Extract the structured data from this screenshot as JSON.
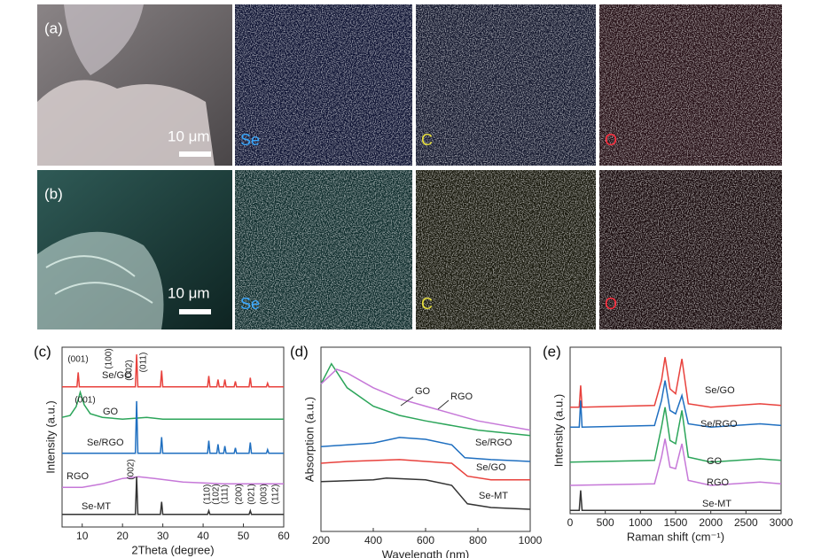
{
  "panels": [
    {
      "label": "(a)",
      "scale_bar": "10 μm",
      "maps": [
        "Se",
        "C",
        "O"
      ]
    },
    {
      "label": "(b)",
      "scale_bar": "10 μm",
      "maps": [
        "Se",
        "C",
        "O"
      ]
    }
  ],
  "chart_data": [
    {
      "type": "line",
      "label": "(c)",
      "xlabel": "2Theta (degree)",
      "ylabel": "Intensity (a.u.)",
      "xlim": [
        5,
        60
      ],
      "xticks": [
        10,
        20,
        30,
        40,
        50,
        60
      ],
      "ylim": [
        0,
        100
      ],
      "annotations": [
        "(001)",
        "(100)",
        "(002)",
        "(011)",
        "(001)",
        "(002)",
        "(110)",
        "(102)",
        "(111)",
        "(200)",
        "(021)",
        "(003)",
        "(112)"
      ],
      "series": [
        {
          "name": "Se/GO",
          "color": "#e8413c",
          "x": [
            5,
            8.7,
            9,
            9.3,
            23.2,
            23.5,
            23.8,
            29.4,
            29.7,
            30,
            41.1,
            41.4,
            41.7,
            43.4,
            43.7,
            44,
            45.1,
            45.4,
            45.7,
            47.7,
            48,
            48.3,
            51.4,
            51.7,
            52,
            55.7,
            56,
            56.3,
            60
          ],
          "values": [
            78,
            78,
            86,
            78,
            78,
            96,
            78,
            78,
            87,
            78,
            78,
            84,
            78,
            78,
            82,
            78,
            78,
            82,
            78,
            78,
            81,
            78,
            78,
            83,
            78,
            78,
            80,
            78,
            78
          ]
        },
        {
          "name": "GO",
          "color": "#2ca55a",
          "x": [
            5,
            7,
            8.5,
            9.5,
            10.5,
            12,
            15,
            20,
            26,
            30,
            40,
            60
          ],
          "values": [
            61,
            62,
            67,
            75,
            68,
            63,
            61,
            60,
            61,
            60,
            60,
            60
          ]
        },
        {
          "name": "Se/RGO",
          "color": "#1f6fc0",
          "x": [
            5,
            23.2,
            23.5,
            23.8,
            29.4,
            29.7,
            30,
            41.1,
            41.4,
            41.7,
            43.4,
            43.7,
            44,
            45.1,
            45.4,
            45.7,
            47.7,
            48,
            48.3,
            51.4,
            51.7,
            52,
            55.7,
            56,
            56.3,
            60
          ],
          "values": [
            41,
            41,
            70,
            41,
            41,
            50,
            41,
            41,
            48,
            41,
            41,
            46,
            41,
            41,
            45,
            41,
            41,
            44,
            41,
            41,
            47,
            41,
            41,
            43,
            41,
            41
          ]
        },
        {
          "name": "RGO",
          "color": "#c678d8",
          "x": [
            5,
            10,
            15,
            20,
            24,
            28,
            35,
            45,
            60
          ],
          "values": [
            22,
            22,
            24,
            27,
            28,
            27,
            25,
            24,
            24
          ]
        },
        {
          "name": "Se-MT",
          "color": "#333333",
          "x": [
            5,
            23.2,
            23.5,
            23.8,
            29.4,
            29.7,
            30,
            41.1,
            41.4,
            41.7,
            51.4,
            51.7,
            52,
            60
          ],
          "values": [
            7,
            7,
            28,
            7,
            7,
            14,
            7,
            7,
            9,
            7,
            7,
            9,
            7,
            7
          ]
        }
      ]
    },
    {
      "type": "line",
      "label": "(d)",
      "xlabel": "Wavelength (nm)",
      "ylabel": "Absorption (a.u.)",
      "xlim": [
        200,
        1000
      ],
      "xticks": [
        200,
        400,
        600,
        800,
        1000
      ],
      "ylim": [
        0,
        100
      ],
      "series": [
        {
          "name": "GO",
          "color": "#2ca55a",
          "x": [
            200,
            240,
            300,
            400,
            500,
            600,
            800,
            1000
          ],
          "values": [
            80,
            91,
            78,
            68,
            63,
            60,
            55,
            52
          ]
        },
        {
          "name": "RGO",
          "color": "#c678d8",
          "x": [
            200,
            260,
            300,
            400,
            500,
            600,
            800,
            1000
          ],
          "values": [
            80,
            88,
            86,
            78,
            72,
            68,
            60,
            55
          ]
        },
        {
          "name": "Se/RGO",
          "color": "#1f6fc0",
          "x": [
            200,
            300,
            400,
            500,
            600,
            700,
            750,
            850,
            1000
          ],
          "values": [
            46,
            47,
            48,
            51,
            50,
            47,
            40,
            39,
            38
          ]
        },
        {
          "name": "Se/GO",
          "color": "#e8413c",
          "x": [
            200,
            300,
            500,
            700,
            760,
            850,
            1000
          ],
          "values": [
            37,
            38,
            39,
            37,
            30,
            28,
            28
          ]
        },
        {
          "name": "Se-MT",
          "color": "#333333",
          "x": [
            200,
            400,
            450,
            600,
            700,
            760,
            850,
            1000
          ],
          "values": [
            27,
            28,
            29,
            28,
            25,
            15,
            13,
            12
          ]
        }
      ]
    },
    {
      "type": "line",
      "label": "(e)",
      "xlabel": "Raman shift (cm⁻¹)",
      "ylabel": "Intensity (a.u.)",
      "xlim": [
        0,
        3000
      ],
      "xticks": [
        0,
        500,
        1000,
        1500,
        2000,
        2500,
        3000
      ],
      "ylim": [
        0,
        100
      ],
      "series": [
        {
          "name": "Se/GO",
          "color": "#e8413c",
          "x": [
            0,
            130,
            150,
            170,
            1200,
            1300,
            1350,
            1420,
            1500,
            1590,
            1680,
            2000,
            2700,
            3000
          ],
          "values": [
            64,
            64,
            77,
            64,
            65,
            80,
            94,
            75,
            72,
            93,
            66,
            64,
            66,
            65
          ]
        },
        {
          "name": "Se/RGO",
          "color": "#1f6fc0",
          "x": [
            0,
            130,
            150,
            170,
            1200,
            1300,
            1350,
            1420,
            1500,
            1590,
            1680,
            2000,
            2700,
            3000
          ],
          "values": [
            52,
            52,
            68,
            52,
            53,
            68,
            80,
            62,
            60,
            71,
            54,
            52,
            54,
            53
          ]
        },
        {
          "name": "GO",
          "color": "#2ca55a",
          "x": [
            0,
            1200,
            1300,
            1350,
            1420,
            1500,
            1590,
            1680,
            2000,
            2700,
            3000
          ],
          "values": [
            31,
            32,
            52,
            64,
            44,
            42,
            62,
            34,
            31,
            33,
            32
          ]
        },
        {
          "name": "RGO",
          "color": "#c678d8",
          "x": [
            0,
            1200,
            1300,
            1350,
            1420,
            1500,
            1590,
            1680,
            2000,
            2700,
            3000
          ],
          "values": [
            17,
            18,
            34,
            45,
            28,
            27,
            42,
            20,
            17,
            19,
            18
          ]
        },
        {
          "name": "Se-MT",
          "color": "#333333",
          "x": [
            0,
            130,
            150,
            170,
            3000
          ],
          "values": [
            2,
            2,
            14,
            2,
            2
          ]
        }
      ]
    }
  ]
}
